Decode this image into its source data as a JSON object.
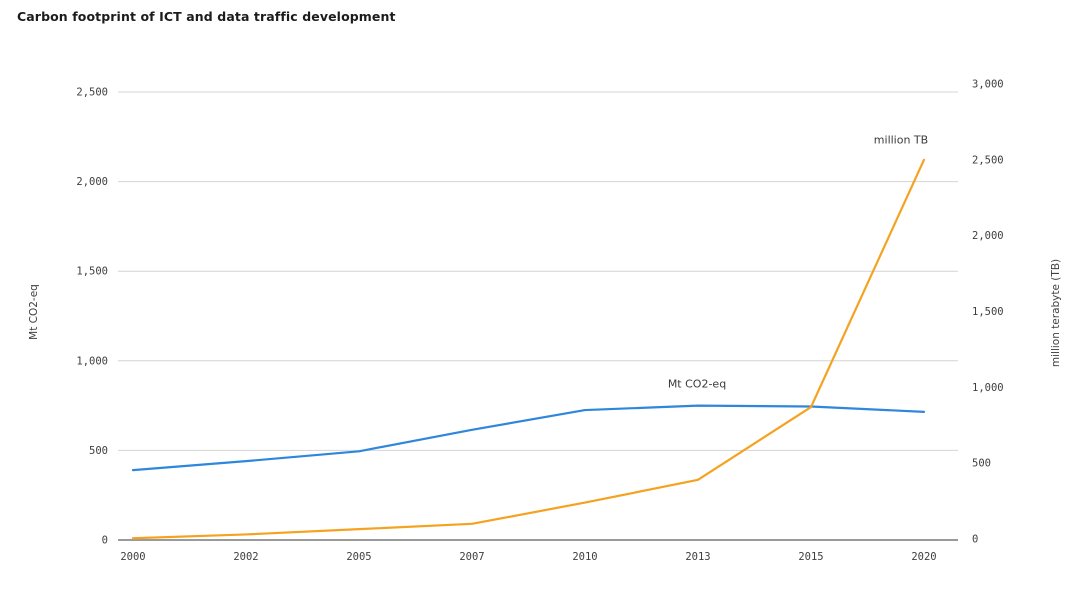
{
  "title": "Carbon footprint of ICT and data traffic development",
  "chart_data": {
    "type": "line",
    "title": "Carbon footprint of ICT and data traffic development",
    "categories": [
      "2000",
      "2002",
      "2005",
      "2007",
      "2010",
      "2013",
      "2015",
      "2020"
    ],
    "series": [
      {
        "name": "Mt CO2-eq",
        "label": "Mt CO2-eq",
        "axis": "left",
        "color": "#2f87dc",
        "values": [
          390,
          440,
          495,
          615,
          725,
          750,
          745,
          715
        ]
      },
      {
        "name": "million TB",
        "label": "million TB",
        "axis": "right",
        "color": "#f5a221",
        "values": [
          5,
          30,
          65,
          100,
          240,
          390,
          870,
          2500
        ]
      }
    ],
    "left_axis": {
      "label": "Mt CO2-eq",
      "range": [
        0,
        2500
      ],
      "ticks": [
        0,
        500,
        1000,
        1500,
        2000,
        2500
      ],
      "tick_labels": [
        "0",
        "500",
        "1,000",
        "1,500",
        "2,000",
        "2,500"
      ]
    },
    "right_axis": {
      "label": "million terabyte (TB)",
      "range": [
        0,
        3000
      ],
      "ticks": [
        0,
        500,
        1000,
        1500,
        2000,
        2500,
        3000
      ],
      "tick_labels": [
        "0",
        "500",
        "1,000",
        "1,500",
        "2,000",
        "2,500",
        "3,000"
      ]
    },
    "grid": true,
    "legend_position": "inline-annotations",
    "colors": {
      "gridline": "#d4d4d4",
      "axis_line": "#9a9a9a",
      "text": "#3f3f3f",
      "title": "#1c1c1c",
      "background": "#ffffff"
    }
  }
}
